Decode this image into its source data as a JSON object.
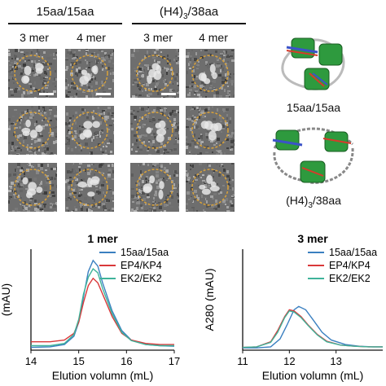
{
  "figure": {
    "top": {
      "group1_title": "15aa/15aa",
      "group2_title_pre": "(H4)",
      "group2_title_sub": "3",
      "group2_title_post": "/38aa",
      "col_labels": [
        "3 mer",
        "4 mer",
        "3 mer",
        "4 mer"
      ],
      "model1_label": "15aa/15aa",
      "model2_label_pre": "(H4)",
      "model2_label_sub": "3",
      "model2_label_post": "/38aa"
    }
  },
  "chart_data": [
    {
      "type": "line",
      "title": "1 mer",
      "xlabel": "Elution volumn (mL)",
      "ylabel_visible": "(mAU)",
      "xlim": [
        14,
        17
      ],
      "xticks": [
        "14",
        "15",
        "16",
        "17"
      ],
      "series": [
        {
          "name": "15aa/15aa",
          "color": "#3a7fc0",
          "x": [
            14.0,
            14.4,
            14.7,
            14.9,
            15.0,
            15.1,
            15.2,
            15.3,
            15.4,
            15.5,
            15.7,
            15.9,
            16.1,
            16.4,
            16.7,
            17.0
          ],
          "y": [
            0.05,
            0.06,
            0.1,
            0.25,
            0.5,
            0.95,
            1.4,
            1.6,
            1.5,
            1.2,
            0.7,
            0.35,
            0.18,
            0.1,
            0.08,
            0.07
          ]
        },
        {
          "name": "EP4/KP4",
          "color": "#d9383a",
          "x": [
            14.0,
            14.4,
            14.7,
            14.9,
            15.0,
            15.1,
            15.2,
            15.3,
            15.4,
            15.5,
            15.7,
            15.9,
            16.1,
            16.4,
            16.7,
            17.0
          ],
          "y": [
            0.15,
            0.15,
            0.18,
            0.3,
            0.5,
            0.85,
            1.15,
            1.28,
            1.2,
            1.0,
            0.6,
            0.3,
            0.18,
            0.12,
            0.1,
            0.1
          ]
        },
        {
          "name": "EK2/EK2",
          "color": "#3fb39a",
          "x": [
            14.0,
            14.4,
            14.7,
            14.9,
            15.0,
            15.1,
            15.2,
            15.3,
            15.4,
            15.5,
            15.7,
            15.9,
            16.1,
            16.4,
            16.7,
            17.0
          ],
          "y": [
            0.08,
            0.08,
            0.12,
            0.28,
            0.55,
            1.0,
            1.3,
            1.45,
            1.38,
            1.1,
            0.65,
            0.32,
            0.17,
            0.1,
            0.08,
            0.08
          ]
        }
      ],
      "legend": [
        "15aa/15aa",
        "EP4/KP4",
        "EK2/EK2"
      ],
      "legend_position": "top-right"
    },
    {
      "type": "line",
      "title": "3 mer",
      "xlabel": "Elution volumn (mL)",
      "ylabel": "A280 (mAU)",
      "xlim": [
        11,
        14
      ],
      "xticks": [
        "11",
        "12",
        "13"
      ],
      "series": [
        {
          "name": "15aa/15aa",
          "color": "#3a7fc0",
          "x": [
            11.0,
            11.3,
            11.6,
            11.8,
            11.95,
            12.1,
            12.2,
            12.35,
            12.5,
            12.7,
            12.9,
            13.2,
            13.5,
            13.8,
            14.0
          ],
          "y": [
            0.04,
            0.04,
            0.06,
            0.2,
            0.45,
            0.72,
            0.78,
            0.72,
            0.55,
            0.32,
            0.18,
            0.1,
            0.07,
            0.06,
            0.06
          ]
        },
        {
          "name": "EP4/KP4",
          "color": "#d9383a",
          "x": [
            11.0,
            11.3,
            11.6,
            11.75,
            11.9,
            12.0,
            12.1,
            12.25,
            12.4,
            12.6,
            12.8,
            13.1,
            13.4,
            13.7,
            14.0
          ],
          "y": [
            0.05,
            0.06,
            0.15,
            0.35,
            0.6,
            0.72,
            0.7,
            0.6,
            0.45,
            0.28,
            0.16,
            0.09,
            0.07,
            0.06,
            0.06
          ]
        },
        {
          "name": "EK2/EK2",
          "color": "#3fb39a",
          "x": [
            11.0,
            11.3,
            11.6,
            11.75,
            11.9,
            12.0,
            12.1,
            12.25,
            12.4,
            12.6,
            12.8,
            13.1,
            13.4,
            13.7,
            14.0
          ],
          "y": [
            0.05,
            0.06,
            0.14,
            0.32,
            0.58,
            0.7,
            0.68,
            0.58,
            0.44,
            0.27,
            0.15,
            0.09,
            0.07,
            0.06,
            0.06
          ]
        }
      ],
      "legend": [
        "15aa/15aa",
        "EP4/KP4",
        "EK2/EK2"
      ],
      "legend_position": "top-right"
    }
  ]
}
